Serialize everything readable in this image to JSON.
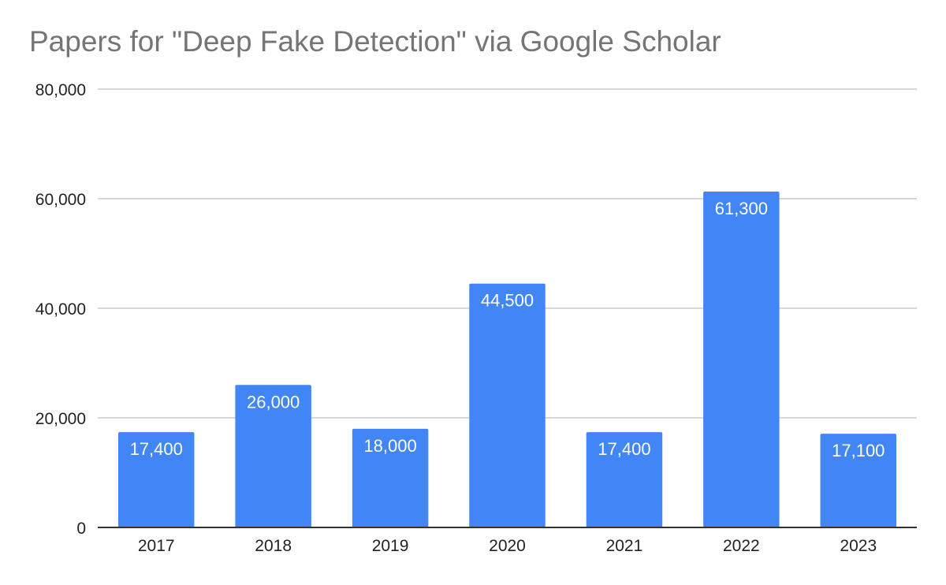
{
  "chart_data": {
    "type": "bar",
    "title": "Papers for \"Deep Fake Detection\" via Google Scholar",
    "xlabel": "",
    "ylabel": "",
    "categories": [
      "2017",
      "2018",
      "2019",
      "2020",
      "2021",
      "2022",
      "2023"
    ],
    "values": [
      17400,
      26000,
      18000,
      44500,
      17400,
      61300,
      17100
    ],
    "data_labels": [
      "17,400",
      "26,000",
      "18,000",
      "44,500",
      "17,400",
      "61,300",
      "17,100"
    ],
    "ylim": [
      0,
      80000
    ],
    "yticks": [
      0,
      20000,
      40000,
      60000,
      80000
    ],
    "ytick_labels": [
      "0",
      "20,000",
      "40,000",
      "60,000",
      "80,000"
    ],
    "grid": true,
    "legend": "none",
    "colors": {
      "bar": "#4285f4",
      "grid": "#cccccc",
      "axis": "#333333",
      "title": "#757575"
    }
  }
}
